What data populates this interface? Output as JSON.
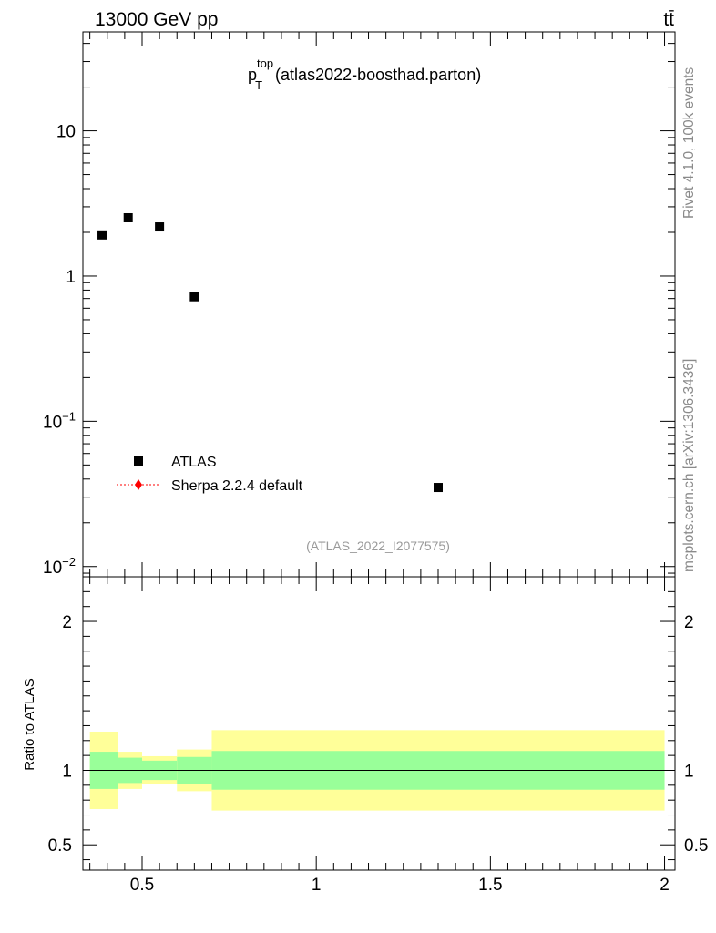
{
  "header": {
    "left": "13000 GeV pp",
    "right": "tt̄"
  },
  "side_text": {
    "rivet": "Rivet 4.1.0,  100k events",
    "mcplots": "mcplots.cern.ch [arXiv:1306.3436]"
  },
  "plot_title": {
    "main": "p",
    "sup": "top",
    "sub": "T",
    "suffix": "(atlas2022-boosthad.parton)"
  },
  "analysis_id": "(ATLAS_2022_I2077575)",
  "legend": {
    "data_label": "ATLAS",
    "mc_label": "Sherpa 2.2.4 default"
  },
  "colors": {
    "band_inner": "#99ff99",
    "band_outer": "#ffff99",
    "mc": "#ff0000",
    "data": "#000000",
    "side_text": "#8a8a8a"
  },
  "chart_data": [
    {
      "type": "scatter",
      "panel": "main",
      "yscale": "log",
      "xlim": [
        0.33,
        2.03
      ],
      "ylim": [
        0.0085,
        48
      ],
      "ytick_labels": [
        {
          "value": 10,
          "label": "10"
        },
        {
          "value": 1,
          "label": "1"
        },
        {
          "value": 0.1,
          "base": "10",
          "exp": "−1"
        },
        {
          "value": 0.01,
          "base": "10",
          "exp": "−2"
        }
      ],
      "series": [
        {
          "name": "ATLAS",
          "x": [
            0.385,
            0.46,
            0.55,
            0.65,
            1.35
          ],
          "y": [
            1.92,
            2.52,
            2.18,
            0.72,
            0.035
          ]
        }
      ]
    },
    {
      "type": "area",
      "panel": "ratio",
      "ylabel": "Ratio to ATLAS",
      "xlim": [
        0.33,
        2.03
      ],
      "ylim": [
        0.33,
        2.3
      ],
      "xtick_labels": [
        {
          "value": 0.5,
          "label": "0.5"
        },
        {
          "value": 1,
          "label": "1"
        },
        {
          "value": 1.5,
          "label": "1.5"
        },
        {
          "value": 2,
          "label": "2"
        }
      ],
      "ytick_labels": [
        {
          "value": 2,
          "label": "2"
        },
        {
          "value": 1,
          "label": "1"
        },
        {
          "value": 0.5,
          "label": "0.5"
        }
      ],
      "bins": [
        {
          "x0": 0.35,
          "x1": 0.43,
          "inner": [
            0.875,
            1.125
          ],
          "outer": [
            0.74,
            1.26
          ]
        },
        {
          "x0": 0.43,
          "x1": 0.5,
          "inner": [
            0.915,
            1.085
          ],
          "outer": [
            0.875,
            1.125
          ]
        },
        {
          "x0": 0.5,
          "x1": 0.6,
          "inner": [
            0.935,
            1.065
          ],
          "outer": [
            0.905,
            1.095
          ]
        },
        {
          "x0": 0.6,
          "x1": 0.7,
          "inner": [
            0.91,
            1.09
          ],
          "outer": [
            0.86,
            1.14
          ]
        },
        {
          "x0": 0.7,
          "x1": 2.0,
          "inner": [
            0.87,
            1.13
          ],
          "outer": [
            0.73,
            1.27
          ]
        }
      ],
      "reference_line": 1
    }
  ]
}
